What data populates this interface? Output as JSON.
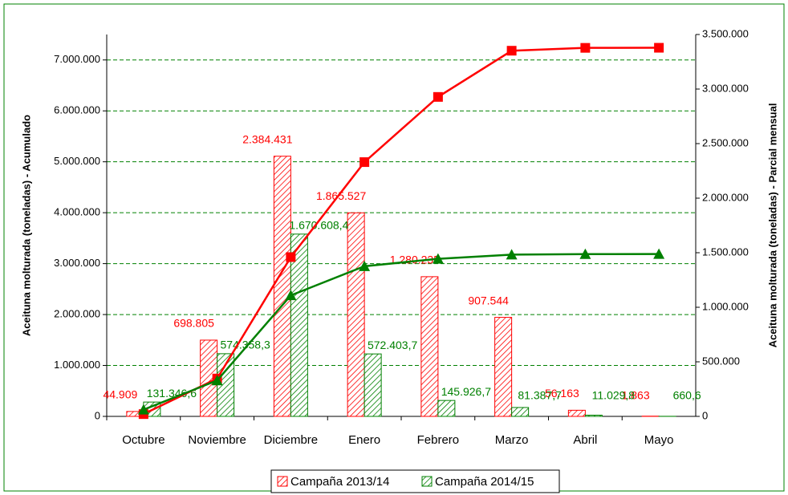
{
  "chart_data": {
    "type": "combo",
    "y_label": "Aceituna molturada (toneladas) - Acumulado",
    "y2_label": "Aceituna molturada (toneladas) - Parcial mensual",
    "categories": [
      "Octubre",
      "Noviembre",
      "Diciembre",
      "Enero",
      "Febrero",
      "Marzo",
      "Abril",
      "Mayo"
    ],
    "series": [
      {
        "name": "Campaña 2013/14",
        "type": "bar",
        "axis": "y2",
        "color": "#ff0000",
        "values": [
          44909,
          698805,
          2384431,
          1865527,
          1280235,
          907544,
          56163,
          1863
        ],
        "value_labels": [
          "44.909",
          "698.805",
          "2.384.431",
          "1.865.527",
          "1.280.235",
          "907.544",
          "56.163",
          "1.863"
        ]
      },
      {
        "name": "Campaña 2014/15",
        "type": "bar",
        "axis": "y2",
        "color": "#008000",
        "values": [
          131346.6,
          574358.3,
          1670608.4,
          572403.7,
          145926.7,
          81387.7,
          11029.8,
          660.6
        ],
        "value_labels": [
          "131.346,6",
          "574.358,3",
          "1.670.608,4",
          "572.403,7",
          "145.926,7",
          "81.387,7",
          "11.029,8",
          "660,6"
        ]
      },
      {
        "type": "line",
        "axis": "y",
        "color": "#ff0000",
        "marker": "square",
        "values": [
          44909,
          743714,
          3128145,
          4993672,
          6273907,
          7181451,
          7237614,
          7239477
        ]
      },
      {
        "type": "line",
        "axis": "y",
        "color": "#008000",
        "marker": "triangle",
        "values": [
          131347,
          705705,
          2376313,
          2948717,
          3094644,
          3176031,
          3187061,
          3187722
        ]
      }
    ],
    "ylim": [
      0,
      7500000
    ],
    "yticks": [
      0,
      {
        "value": 1000000,
        "label": "1.000.000"
      },
      {
        "value": 2000000,
        "label": "2.000.000"
      },
      {
        "value": 3000000,
        "label": "3.000.000"
      },
      {
        "value": 4000000,
        "label": "4.000.000"
      },
      {
        "value": 5000000,
        "label": "5.000.000"
      },
      {
        "value": 6000000,
        "label": "6.000.000"
      },
      {
        "value": 7000000,
        "label": "7.000.000"
      }
    ],
    "y2lim": [
      0,
      3500000
    ],
    "y2ticks": [
      0,
      {
        "value": 500000,
        "label": "500.000"
      },
      {
        "value": 1000000,
        "label": "1.000.000"
      },
      {
        "value": 1500000,
        "label": "1.500.000"
      },
      {
        "value": 2000000,
        "label": "2.000.000"
      },
      {
        "value": 2500000,
        "label": "2.500.000"
      },
      {
        "value": 3000000,
        "label": "3.000.000"
      },
      {
        "value": 3500000,
        "label": "3.500.000"
      }
    ],
    "grid": true,
    "grid_color": "#008000",
    "legend": "bottom"
  }
}
